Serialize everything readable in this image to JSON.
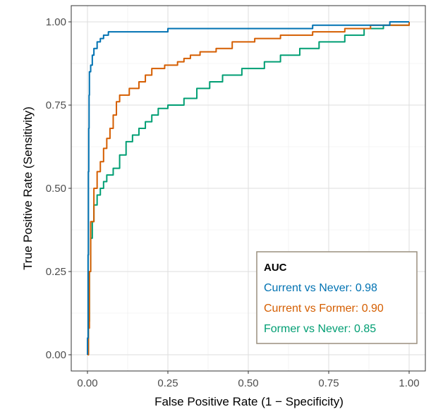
{
  "chart_data": {
    "type": "line",
    "title": "",
    "xlabel": "False Positive Rate (1 − Specificity)",
    "ylabel": "True Positive Rate (Sensitivity)",
    "xlim": [
      0,
      1
    ],
    "ylim": [
      0,
      1
    ],
    "grid": true,
    "x_ticks": [
      0,
      0.25,
      0.5,
      0.75,
      1
    ],
    "y_ticks": [
      0,
      0.25,
      0.5,
      0.75,
      1
    ],
    "x_tick_labels": [
      "0.00",
      "0.25",
      "0.50",
      "0.75",
      "1.00"
    ],
    "y_tick_labels": [
      "0.00",
      "0.25",
      "0.50",
      "0.75",
      "1.00"
    ],
    "legend": {
      "title": "AUC",
      "position": "bottom-right",
      "entries": [
        {
          "label": "Current vs Never: 0.98",
          "color": "#0072B2"
        },
        {
          "label": "Current vs Former: 0.90",
          "color": "#D55E00"
        },
        {
          "label": "Former vs Never: 0.85",
          "color": "#009E73"
        }
      ]
    },
    "series": [
      {
        "name": "Current vs Never",
        "auc": 0.98,
        "color": "#0072B2",
        "points": [
          [
            0,
            0
          ],
          [
            0,
            0.05
          ],
          [
            0.002,
            0.3
          ],
          [
            0.003,
            0.55
          ],
          [
            0.004,
            0.68
          ],
          [
            0.005,
            0.78
          ],
          [
            0.006,
            0.85
          ],
          [
            0.01,
            0.87
          ],
          [
            0.015,
            0.9
          ],
          [
            0.02,
            0.92
          ],
          [
            0.03,
            0.94
          ],
          [
            0.04,
            0.95
          ],
          [
            0.05,
            0.96
          ],
          [
            0.065,
            0.97
          ],
          [
            0.2,
            0.97
          ],
          [
            0.25,
            0.98
          ],
          [
            0.5,
            0.98
          ],
          [
            0.7,
            0.99
          ],
          [
            0.9,
            0.99
          ],
          [
            0.94,
            1.0
          ],
          [
            1.0,
            1.0
          ]
        ]
      },
      {
        "name": "Current vs Former",
        "auc": 0.9,
        "color": "#D55E00",
        "points": [
          [
            0,
            0
          ],
          [
            0.003,
            0.08
          ],
          [
            0.006,
            0.25
          ],
          [
            0.01,
            0.4
          ],
          [
            0.02,
            0.5
          ],
          [
            0.03,
            0.55
          ],
          [
            0.04,
            0.58
          ],
          [
            0.05,
            0.62
          ],
          [
            0.06,
            0.65
          ],
          [
            0.07,
            0.68
          ],
          [
            0.08,
            0.72
          ],
          [
            0.09,
            0.76
          ],
          [
            0.1,
            0.78
          ],
          [
            0.13,
            0.8
          ],
          [
            0.16,
            0.82
          ],
          [
            0.18,
            0.84
          ],
          [
            0.2,
            0.86
          ],
          [
            0.24,
            0.87
          ],
          [
            0.28,
            0.88
          ],
          [
            0.3,
            0.89
          ],
          [
            0.32,
            0.9
          ],
          [
            0.35,
            0.91
          ],
          [
            0.4,
            0.92
          ],
          [
            0.45,
            0.94
          ],
          [
            0.52,
            0.95
          ],
          [
            0.6,
            0.96
          ],
          [
            0.7,
            0.97
          ],
          [
            0.8,
            0.98
          ],
          [
            0.88,
            0.99
          ],
          [
            0.99,
            0.99
          ],
          [
            1.0,
            1.0
          ]
        ]
      },
      {
        "name": "Former vs Never",
        "auc": 0.85,
        "color": "#009E73",
        "points": [
          [
            0,
            0
          ],
          [
            0.003,
            0.1
          ],
          [
            0.006,
            0.25
          ],
          [
            0.01,
            0.35
          ],
          [
            0.015,
            0.4
          ],
          [
            0.02,
            0.45
          ],
          [
            0.03,
            0.48
          ],
          [
            0.04,
            0.5
          ],
          [
            0.05,
            0.52
          ],
          [
            0.06,
            0.54
          ],
          [
            0.08,
            0.56
          ],
          [
            0.1,
            0.6
          ],
          [
            0.12,
            0.64
          ],
          [
            0.14,
            0.66
          ],
          [
            0.16,
            0.68
          ],
          [
            0.18,
            0.7
          ],
          [
            0.2,
            0.72
          ],
          [
            0.22,
            0.74
          ],
          [
            0.25,
            0.75
          ],
          [
            0.3,
            0.77
          ],
          [
            0.34,
            0.8
          ],
          [
            0.38,
            0.82
          ],
          [
            0.42,
            0.84
          ],
          [
            0.48,
            0.86
          ],
          [
            0.55,
            0.88
          ],
          [
            0.6,
            0.9
          ],
          [
            0.66,
            0.92
          ],
          [
            0.72,
            0.94
          ],
          [
            0.8,
            0.96
          ],
          [
            0.86,
            0.98
          ],
          [
            0.92,
            0.99
          ],
          [
            1.0,
            1.0
          ]
        ]
      }
    ]
  }
}
